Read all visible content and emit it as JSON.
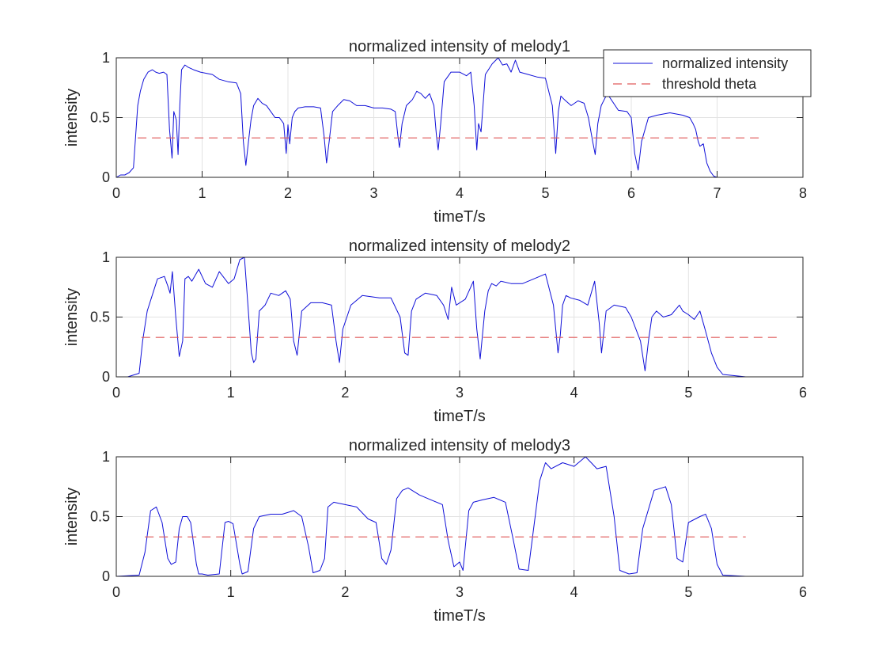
{
  "figure": {
    "colors": {
      "signal": "#1010d8",
      "threshold": "#e05a5a",
      "grid": "#e3e3e3",
      "axis": "#262626"
    }
  },
  "chart_data": [
    {
      "type": "line",
      "title": "normalized intensity of melody1",
      "xlabel": "timeT/s",
      "ylabel": "intensity",
      "xlim": [
        0,
        8
      ],
      "ylim": [
        0,
        1
      ],
      "xticks": [
        "0",
        "1",
        "2",
        "3",
        "4",
        "5",
        "6",
        "7",
        "8"
      ],
      "yticks": [
        "0",
        "0.5",
        "1"
      ],
      "grid": true,
      "legend": {
        "position": "top-right",
        "entries": [
          "normalized intensity",
          "threshold theta"
        ]
      },
      "series": [
        {
          "name": "normalized intensity",
          "style": "solid",
          "x": [
            0,
            0.05,
            0.1,
            0.15,
            0.2,
            0.25,
            0.28,
            0.32,
            0.37,
            0.42,
            0.46,
            0.5,
            0.55,
            0.59,
            0.62,
            0.65,
            0.67,
            0.7,
            0.72,
            0.74,
            0.76,
            0.8,
            0.84,
            0.9,
            0.98,
            1.05,
            1.12,
            1.2,
            1.3,
            1.4,
            1.45,
            1.48,
            1.51,
            1.54,
            1.57,
            1.6,
            1.65,
            1.7,
            1.75,
            1.8,
            1.85,
            1.9,
            1.95,
            1.98,
            2.0,
            2.02,
            2.05,
            2.08,
            2.12,
            2.2,
            2.3,
            2.38,
            2.42,
            2.45,
            2.48,
            2.52,
            2.58,
            2.65,
            2.72,
            2.8,
            2.9,
            3.0,
            3.1,
            3.2,
            3.25,
            3.28,
            3.3,
            3.33,
            3.38,
            3.45,
            3.5,
            3.55,
            3.6,
            3.65,
            3.7,
            3.73,
            3.75,
            3.78,
            3.82,
            3.9,
            4.0,
            4.08,
            4.13,
            4.17,
            4.2,
            4.22,
            4.25,
            4.3,
            4.38,
            4.45,
            4.5,
            4.55,
            4.6,
            4.65,
            4.7,
            4.8,
            4.9,
            5.0,
            5.08,
            5.12,
            5.15,
            5.18,
            5.22,
            5.3,
            5.38,
            5.45,
            5.5,
            5.55,
            5.58,
            5.61,
            5.65,
            5.72,
            5.85,
            5.95,
            6.0,
            6.04,
            6.08,
            6.12,
            6.2,
            6.3,
            6.45,
            6.6,
            6.68,
            6.72,
            6.75,
            6.78,
            6.8,
            6.84,
            6.88,
            6.92,
            6.96,
            7.0,
            7.1,
            7.3,
            7.5
          ],
          "y": [
            0,
            0.02,
            0.02,
            0.04,
            0.08,
            0.6,
            0.72,
            0.82,
            0.88,
            0.9,
            0.88,
            0.87,
            0.88,
            0.86,
            0.4,
            0.16,
            0.55,
            0.48,
            0.19,
            0.6,
            0.9,
            0.94,
            0.92,
            0.9,
            0.88,
            0.87,
            0.86,
            0.82,
            0.8,
            0.79,
            0.7,
            0.3,
            0.1,
            0.3,
            0.48,
            0.6,
            0.66,
            0.62,
            0.6,
            0.55,
            0.5,
            0.5,
            0.45,
            0.2,
            0.44,
            0.28,
            0.5,
            0.55,
            0.58,
            0.59,
            0.59,
            0.58,
            0.35,
            0.12,
            0.3,
            0.55,
            0.6,
            0.65,
            0.64,
            0.6,
            0.6,
            0.58,
            0.58,
            0.57,
            0.55,
            0.35,
            0.25,
            0.45,
            0.6,
            0.65,
            0.72,
            0.7,
            0.66,
            0.7,
            0.6,
            0.35,
            0.23,
            0.45,
            0.8,
            0.88,
            0.88,
            0.85,
            0.88,
            0.6,
            0.23,
            0.45,
            0.38,
            0.86,
            0.95,
            1.0,
            0.94,
            0.95,
            0.88,
            0.98,
            0.88,
            0.86,
            0.84,
            0.83,
            0.6,
            0.2,
            0.55,
            0.68,
            0.65,
            0.6,
            0.64,
            0.62,
            0.5,
            0.3,
            0.19,
            0.45,
            0.6,
            0.7,
            0.56,
            0.55,
            0.5,
            0.2,
            0.06,
            0.3,
            0.5,
            0.52,
            0.54,
            0.52,
            0.5,
            0.45,
            0.4,
            0.3,
            0.26,
            0.28,
            0.12,
            0.05,
            0.01,
            0,
            0,
            0,
            0
          ]
        },
        {
          "name": "threshold theta",
          "style": "dashed",
          "x": [
            0.25,
            7.5
          ],
          "y": [
            0.33,
            0.33
          ]
        }
      ]
    },
    {
      "type": "line",
      "title": "normalized intensity of melody2",
      "xlabel": "timeT/s",
      "ylabel": "intensity",
      "xlim": [
        0,
        6
      ],
      "ylim": [
        0,
        1
      ],
      "xticks": [
        "0",
        "1",
        "2",
        "3",
        "4",
        "5",
        "6"
      ],
      "yticks": [
        "0",
        "0.5",
        "1"
      ],
      "grid": true,
      "series": [
        {
          "name": "normalized intensity",
          "style": "solid",
          "x": [
            0,
            0.1,
            0.2,
            0.23,
            0.27,
            0.32,
            0.36,
            0.42,
            0.45,
            0.47,
            0.49,
            0.52,
            0.55,
            0.58,
            0.6,
            0.63,
            0.66,
            0.72,
            0.78,
            0.84,
            0.9,
            0.98,
            1.03,
            1.08,
            1.12,
            1.15,
            1.18,
            1.2,
            1.22,
            1.25,
            1.3,
            1.35,
            1.42,
            1.48,
            1.52,
            1.55,
            1.58,
            1.62,
            1.7,
            1.8,
            1.88,
            1.92,
            1.95,
            1.98,
            2.05,
            2.15,
            2.3,
            2.4,
            2.48,
            2.52,
            2.55,
            2.58,
            2.62,
            2.7,
            2.8,
            2.86,
            2.9,
            2.93,
            2.97,
            3.05,
            3.12,
            3.15,
            3.18,
            3.22,
            3.25,
            3.28,
            3.32,
            3.36,
            3.45,
            3.55,
            3.65,
            3.75,
            3.82,
            3.86,
            3.88,
            3.9,
            3.93,
            3.97,
            4.05,
            4.12,
            4.18,
            4.22,
            4.24,
            4.28,
            4.35,
            4.45,
            4.5,
            4.58,
            4.62,
            4.65,
            4.68,
            4.72,
            4.78,
            4.85,
            4.92,
            4.95,
            5.0,
            5.05,
            5.1,
            5.15,
            5.2,
            5.25,
            5.3,
            5.5,
            5.8
          ],
          "y": [
            0,
            0,
            0.03,
            0.3,
            0.55,
            0.7,
            0.82,
            0.84,
            0.76,
            0.7,
            0.88,
            0.5,
            0.17,
            0.3,
            0.82,
            0.84,
            0.8,
            0.9,
            0.78,
            0.75,
            0.88,
            0.78,
            0.82,
            0.98,
            1.0,
            0.6,
            0.2,
            0.12,
            0.15,
            0.55,
            0.6,
            0.7,
            0.68,
            0.72,
            0.65,
            0.3,
            0.18,
            0.55,
            0.62,
            0.62,
            0.6,
            0.3,
            0.12,
            0.4,
            0.6,
            0.68,
            0.66,
            0.66,
            0.5,
            0.2,
            0.18,
            0.55,
            0.65,
            0.7,
            0.68,
            0.6,
            0.48,
            0.75,
            0.6,
            0.65,
            0.8,
            0.4,
            0.15,
            0.55,
            0.72,
            0.78,
            0.76,
            0.8,
            0.78,
            0.78,
            0.82,
            0.86,
            0.6,
            0.2,
            0.35,
            0.6,
            0.68,
            0.66,
            0.64,
            0.6,
            0.8,
            0.45,
            0.2,
            0.55,
            0.6,
            0.58,
            0.5,
            0.3,
            0.05,
            0.3,
            0.5,
            0.55,
            0.5,
            0.52,
            0.6,
            0.55,
            0.52,
            0.48,
            0.55,
            0.38,
            0.2,
            0.08,
            0.02,
            0,
            0
          ]
        },
        {
          "name": "threshold theta",
          "style": "dashed",
          "x": [
            0.22,
            5.8
          ],
          "y": [
            0.33,
            0.33
          ]
        }
      ]
    },
    {
      "type": "line",
      "title": "normalized intensity of melody3",
      "xlabel": "timeT/s",
      "ylabel": "intensity",
      "xlim": [
        0,
        6
      ],
      "ylim": [
        0,
        1
      ],
      "xticks": [
        "0",
        "1",
        "2",
        "3",
        "4",
        "5",
        "6"
      ],
      "yticks": [
        "0",
        "0.5",
        "1"
      ],
      "grid": true,
      "series": [
        {
          "name": "normalized intensity",
          "style": "solid",
          "x": [
            0,
            0.2,
            0.25,
            0.3,
            0.35,
            0.4,
            0.45,
            0.48,
            0.52,
            0.55,
            0.58,
            0.62,
            0.65,
            0.7,
            0.72,
            0.75,
            0.8,
            0.9,
            0.95,
            0.98,
            1.02,
            1.08,
            1.1,
            1.15,
            1.2,
            1.25,
            1.35,
            1.45,
            1.55,
            1.62,
            1.68,
            1.72,
            1.78,
            1.82,
            1.85,
            1.9,
            2.0,
            2.1,
            2.2,
            2.27,
            2.32,
            2.36,
            2.4,
            2.45,
            2.5,
            2.55,
            2.65,
            2.75,
            2.85,
            2.9,
            2.95,
            3.0,
            3.03,
            3.08,
            3.12,
            3.2,
            3.3,
            3.4,
            3.47,
            3.52,
            3.6,
            3.7,
            3.75,
            3.8,
            3.9,
            4.0,
            4.1,
            4.15,
            4.2,
            4.28,
            4.35,
            4.4,
            4.48,
            4.55,
            4.6,
            4.7,
            4.8,
            4.85,
            4.9,
            4.95,
            5.0,
            5.1,
            5.15,
            5.2,
            5.25,
            5.3,
            5.5
          ],
          "y": [
            0,
            0.01,
            0.2,
            0.55,
            0.58,
            0.45,
            0.15,
            0.1,
            0.12,
            0.4,
            0.5,
            0.5,
            0.45,
            0.1,
            0.02,
            0.02,
            0.01,
            0.02,
            0.45,
            0.46,
            0.44,
            0.1,
            0.02,
            0.04,
            0.4,
            0.5,
            0.52,
            0.52,
            0.55,
            0.5,
            0.25,
            0.03,
            0.05,
            0.15,
            0.58,
            0.62,
            0.6,
            0.58,
            0.48,
            0.45,
            0.15,
            0.1,
            0.22,
            0.65,
            0.72,
            0.74,
            0.68,
            0.64,
            0.6,
            0.3,
            0.08,
            0.12,
            0.05,
            0.55,
            0.62,
            0.64,
            0.66,
            0.62,
            0.3,
            0.06,
            0.05,
            0.8,
            0.95,
            0.9,
            0.95,
            0.92,
            1.0,
            0.95,
            0.9,
            0.92,
            0.5,
            0.05,
            0.02,
            0.03,
            0.4,
            0.72,
            0.75,
            0.6,
            0.15,
            0.12,
            0.45,
            0.5,
            0.52,
            0.4,
            0.1,
            0.01,
            0
          ]
        },
        {
          "name": "threshold theta",
          "style": "dashed",
          "x": [
            0.25,
            5.5
          ],
          "y": [
            0.33,
            0.33
          ]
        }
      ]
    }
  ]
}
